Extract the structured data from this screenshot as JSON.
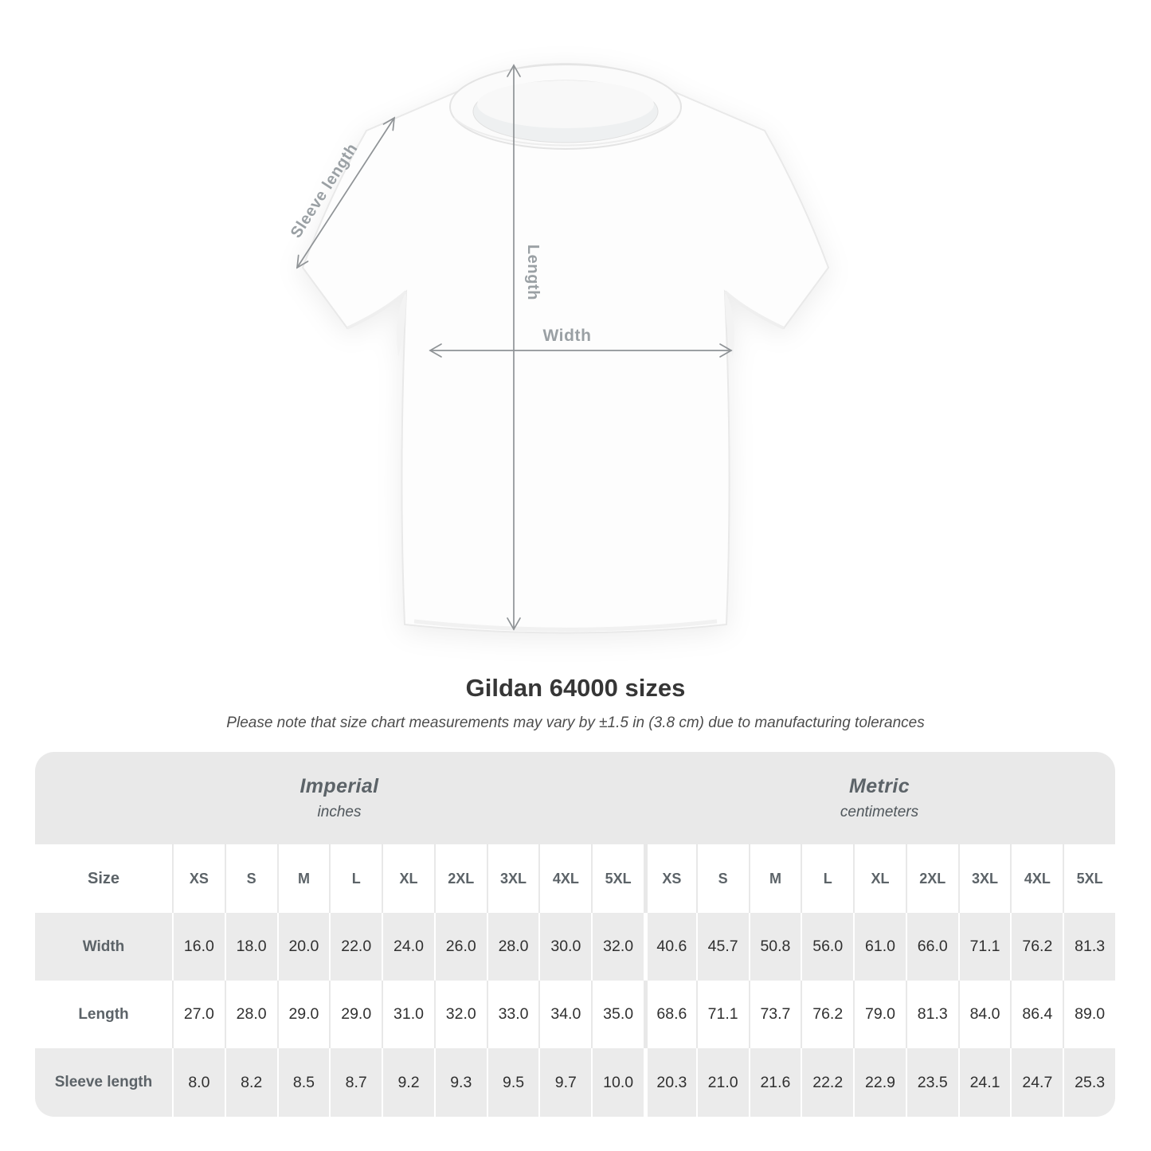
{
  "page": {
    "title": "Gildan 64000 sizes",
    "note": "Please note that size chart measurements may vary by ±1.5 in (3.8 cm) due to manufacturing tolerances"
  },
  "diagram": {
    "sleeve_label": "Sleeve length",
    "length_label": "Length",
    "width_label": "Width"
  },
  "table": {
    "size_label": "Size",
    "groups": [
      {
        "name": "Imperial",
        "unit": "inches"
      },
      {
        "name": "Metric",
        "unit": "centimeters"
      }
    ],
    "sizes": [
      "XS",
      "S",
      "M",
      "L",
      "XL",
      "2XL",
      "3XL",
      "4XL",
      "5XL"
    ],
    "rows": [
      {
        "label": "Width",
        "imperial": [
          "16.0",
          "18.0",
          "20.0",
          "22.0",
          "24.0",
          "26.0",
          "28.0",
          "30.0",
          "32.0"
        ],
        "metric": [
          "40.6",
          "45.7",
          "50.8",
          "56.0",
          "61.0",
          "66.0",
          "71.1",
          "76.2",
          "81.3"
        ]
      },
      {
        "label": "Length",
        "imperial": [
          "27.0",
          "28.0",
          "29.0",
          "29.0",
          "31.0",
          "32.0",
          "33.0",
          "34.0",
          "35.0"
        ],
        "metric": [
          "68.6",
          "71.1",
          "73.7",
          "76.2",
          "79.0",
          "81.3",
          "84.0",
          "86.4",
          "89.0"
        ]
      },
      {
        "label": "Sleeve length",
        "imperial": [
          "8.0",
          "8.2",
          "8.5",
          "8.7",
          "9.2",
          "9.3",
          "9.5",
          "9.7",
          "10.0"
        ],
        "metric": [
          "20.3",
          "21.0",
          "21.6",
          "22.2",
          "22.9",
          "23.5",
          "24.1",
          "24.7",
          "25.3"
        ]
      }
    ]
  },
  "chart_data": {
    "type": "table",
    "title": "Gildan 64000 sizes",
    "note": "Please note that size chart measurements may vary by ±1.5 in (3.8 cm) due to manufacturing tolerances",
    "column_groups": [
      {
        "name": "Imperial",
        "unit": "inches",
        "columns": [
          "XS",
          "S",
          "M",
          "L",
          "XL",
          "2XL",
          "3XL",
          "4XL",
          "5XL"
        ]
      },
      {
        "name": "Metric",
        "unit": "centimeters",
        "columns": [
          "XS",
          "S",
          "M",
          "L",
          "XL",
          "2XL",
          "3XL",
          "4XL",
          "5XL"
        ]
      }
    ],
    "rows": [
      {
        "measurement": "Width",
        "imperial": [
          16.0,
          18.0,
          20.0,
          22.0,
          24.0,
          26.0,
          28.0,
          30.0,
          32.0
        ],
        "metric": [
          40.6,
          45.7,
          50.8,
          56.0,
          61.0,
          66.0,
          71.1,
          76.2,
          81.3
        ]
      },
      {
        "measurement": "Length",
        "imperial": [
          27.0,
          28.0,
          29.0,
          29.0,
          31.0,
          32.0,
          33.0,
          34.0,
          35.0
        ],
        "metric": [
          68.6,
          71.1,
          73.7,
          76.2,
          79.0,
          81.3,
          84.0,
          86.4,
          89.0
        ]
      },
      {
        "measurement": "Sleeve length",
        "imperial": [
          8.0,
          8.2,
          8.5,
          8.7,
          9.2,
          9.3,
          9.5,
          9.7,
          10.0
        ],
        "metric": [
          20.3,
          21.0,
          21.6,
          22.2,
          22.9,
          23.5,
          24.1,
          24.7,
          25.3
        ]
      }
    ]
  },
  "colors": {
    "band_gray": "#e9e9e9",
    "stripe_gray": "#ebebeb",
    "header_text": "#5c6368",
    "value_text": "#303030",
    "arrow_gray": "#8f9396",
    "arrow_label_gray": "#9aa0a4"
  }
}
